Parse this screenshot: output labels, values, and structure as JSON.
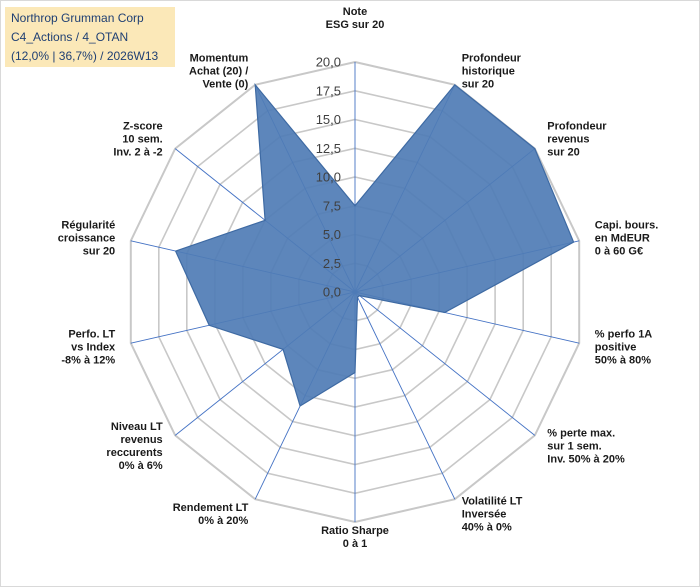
{
  "title": {
    "line1": "Northrop Grumman Corp",
    "line2": "C4_Actions / 4_OTAN",
    "line3": "(12,0% | 36,7%) / 2026W13"
  },
  "colors": {
    "fill": "#4f7cb5",
    "stroke": "#3e6aa3",
    "grid": "#c8c8c8",
    "spoke": "#4472c4",
    "title_bg": "#fbe8b8",
    "title_text": "#1f3f73"
  },
  "chart_data": {
    "type": "radar",
    "rmin": 0,
    "rmax": 20,
    "tick_step": 2.5,
    "tick_labels": [
      "0,0",
      "2,5",
      "5,0",
      "7,5",
      "10,0",
      "12,5",
      "15,0",
      "17,5",
      "20,0"
    ],
    "axes": [
      {
        "label": [
          "Note",
          "ESG sur 20"
        ],
        "value": 7.5
      },
      {
        "label": [
          "Profondeur",
          "historique",
          "sur 20"
        ],
        "value": 20
      },
      {
        "label": [
          "Profondeur",
          "revenus",
          "sur 20"
        ],
        "value": 20
      },
      {
        "label": [
          "Capi. bours.",
          "en MdEUR",
          "0 à 60 G€"
        ],
        "value": 19.5
      },
      {
        "label": [
          "% perfo 1A",
          "positive",
          "50% à 80%"
        ],
        "value": 8
      },
      {
        "label": [
          "% perte max.",
          "sur 1 sem.",
          "Inv. 50% à 20%"
        ],
        "value": 0.5
      },
      {
        "label": [
          "Volatilité LT",
          "Inversée",
          "40% à 0%"
        ],
        "value": 0.5
      },
      {
        "label": [
          "Ratio Sharpe",
          "0 à 1"
        ],
        "value": 7
      },
      {
        "label": [
          "Rendement LT",
          "0% à 20%"
        ],
        "value": 11
      },
      {
        "label": [
          "Niveau LT",
          "revenus",
          "reccurents",
          "0% à 6%"
        ],
        "value": 8
      },
      {
        "label": [
          "Perfo. LT",
          "vs Index",
          "-8% à 12%"
        ],
        "value": 13
      },
      {
        "label": [
          "Régularité",
          "croissance",
          "sur 20"
        ],
        "value": 16
      },
      {
        "label": [
          "Z-score",
          "10 sem.",
          "Inv. 2 à -2"
        ],
        "value": 10
      },
      {
        "label": [
          "Momentum",
          "Achat (20) /",
          "Vente (0)"
        ],
        "value": 20
      }
    ]
  }
}
